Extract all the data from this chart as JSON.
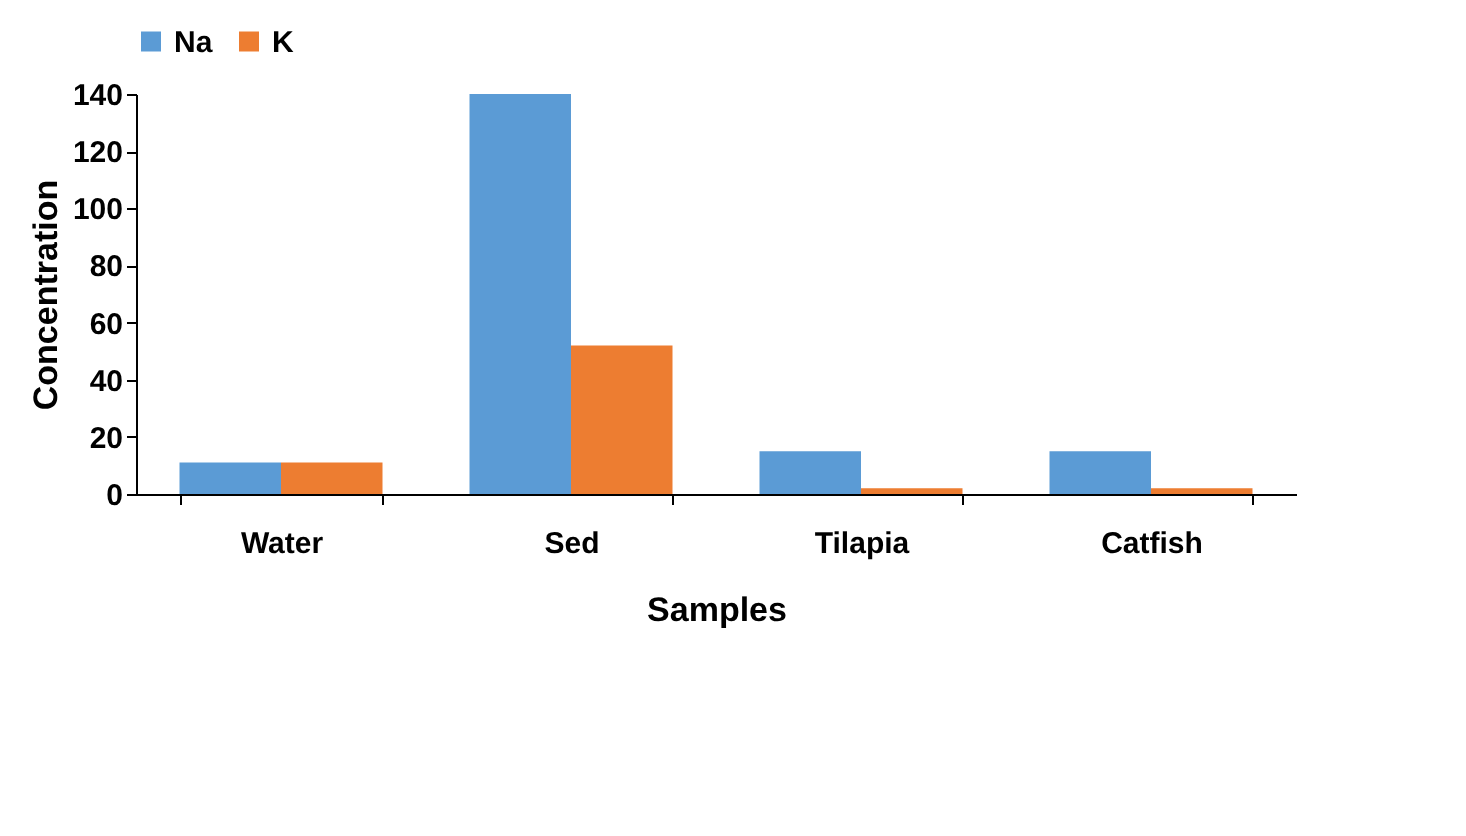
{
  "chart_data": {
    "type": "bar",
    "xlabel": "Samples",
    "ylabel": "Concentration",
    "categories": [
      "Water",
      "Sed",
      "Tilapia",
      "Catfish"
    ],
    "series": [
      {
        "name": "Na",
        "color": "#5b9bd5",
        "values": [
          11,
          140,
          15,
          15
        ]
      },
      {
        "name": "K",
        "color": "#ed7d31",
        "values": [
          11,
          52,
          2,
          2
        ]
      }
    ],
    "ylim": [
      0,
      140
    ],
    "yticks": [
      0,
      20,
      40,
      60,
      80,
      100,
      120,
      140
    ],
    "grid": false,
    "legend": "top"
  }
}
